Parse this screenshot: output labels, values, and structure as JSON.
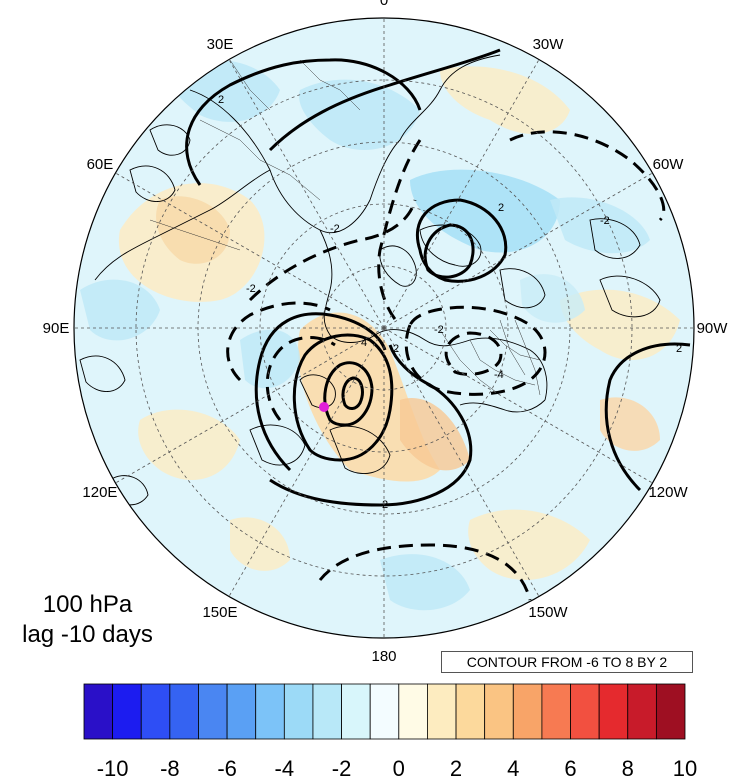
{
  "plot_label": {
    "level": "100 hPa",
    "lag": "lag -10 days"
  },
  "contour_info": "CONTOUR FROM -6 TO 8 BY 2",
  "longitude_labels": [
    {
      "label": "0",
      "lon": 0
    },
    {
      "label": "30W",
      "lon": -30
    },
    {
      "label": "60W",
      "lon": -60
    },
    {
      "label": "90W",
      "lon": -90
    },
    {
      "label": "120W",
      "lon": -120
    },
    {
      "label": "150W",
      "lon": -150
    },
    {
      "label": "180",
      "lon": 180
    },
    {
      "label": "150E",
      "lon": 150
    },
    {
      "label": "120E",
      "lon": 120
    },
    {
      "label": "90E",
      "lon": 90
    },
    {
      "label": "60E",
      "lon": 60
    },
    {
      "label": "30E",
      "lon": 30
    }
  ],
  "contour_labels": [
    "2",
    "2",
    "2",
    "2",
    "-2",
    "-2",
    "-4",
    "4",
    "-2",
    "2",
    "-2"
  ],
  "colorbar": {
    "tick_labels": [
      "-10",
      "-8",
      "-6",
      "-4",
      "-2",
      "0",
      "2",
      "4",
      "6",
      "8",
      "10"
    ],
    "colors": [
      "#2a10c8",
      "#1c1cf0",
      "#2e4ef5",
      "#3563f2",
      "#4a86f2",
      "#5aa0f4",
      "#7cc3f8",
      "#9cdaf7",
      "#b8e8f8",
      "#d8f6fb",
      "#f3fcff",
      "#fffbe6",
      "#fdecc0",
      "#fcd99c",
      "#fac483",
      "#f8a468",
      "#f77a52",
      "#f25040",
      "#e52a2e",
      "#c81b2a",
      "#9e0f22"
    ]
  },
  "colors": {
    "land_outline": "#000000",
    "grid": "#555555",
    "marker": "#e020d8"
  }
}
